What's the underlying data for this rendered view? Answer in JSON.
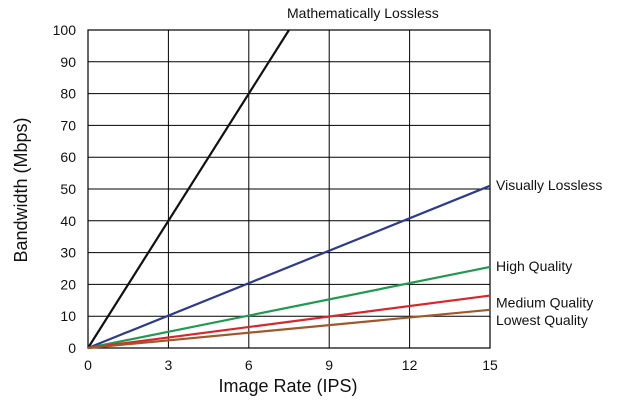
{
  "chart_data": {
    "type": "line",
    "title": "",
    "xlabel": "Image Rate (IPS)",
    "ylabel": "Bandwidth (Mbps)",
    "xlim": [
      0,
      15
    ],
    "ylim": [
      0,
      100
    ],
    "xticks": [
      0,
      3,
      6,
      9,
      12,
      15
    ],
    "yticks": [
      0,
      10,
      20,
      30,
      40,
      50,
      60,
      70,
      80,
      90,
      100
    ],
    "grid": true,
    "legend": "none",
    "series": [
      {
        "name": "Mathematically Lossless",
        "color": "#111111",
        "x": [
          0,
          7.5
        ],
        "y": [
          0,
          100
        ]
      },
      {
        "name": "Visually Lossless",
        "color": "#2e3a8c",
        "x": [
          0,
          15
        ],
        "y": [
          0,
          51
        ]
      },
      {
        "name": "High Quality",
        "color": "#1f9a4f",
        "x": [
          0,
          15
        ],
        "y": [
          0,
          25.5
        ]
      },
      {
        "name": "Medium Quality",
        "color": "#d9262b",
        "x": [
          0,
          15
        ],
        "y": [
          0,
          16.5
        ]
      },
      {
        "name": "Lowest Quality",
        "color": "#a0582a",
        "x": [
          0,
          15
        ],
        "y": [
          0,
          12
        ]
      }
    ]
  }
}
